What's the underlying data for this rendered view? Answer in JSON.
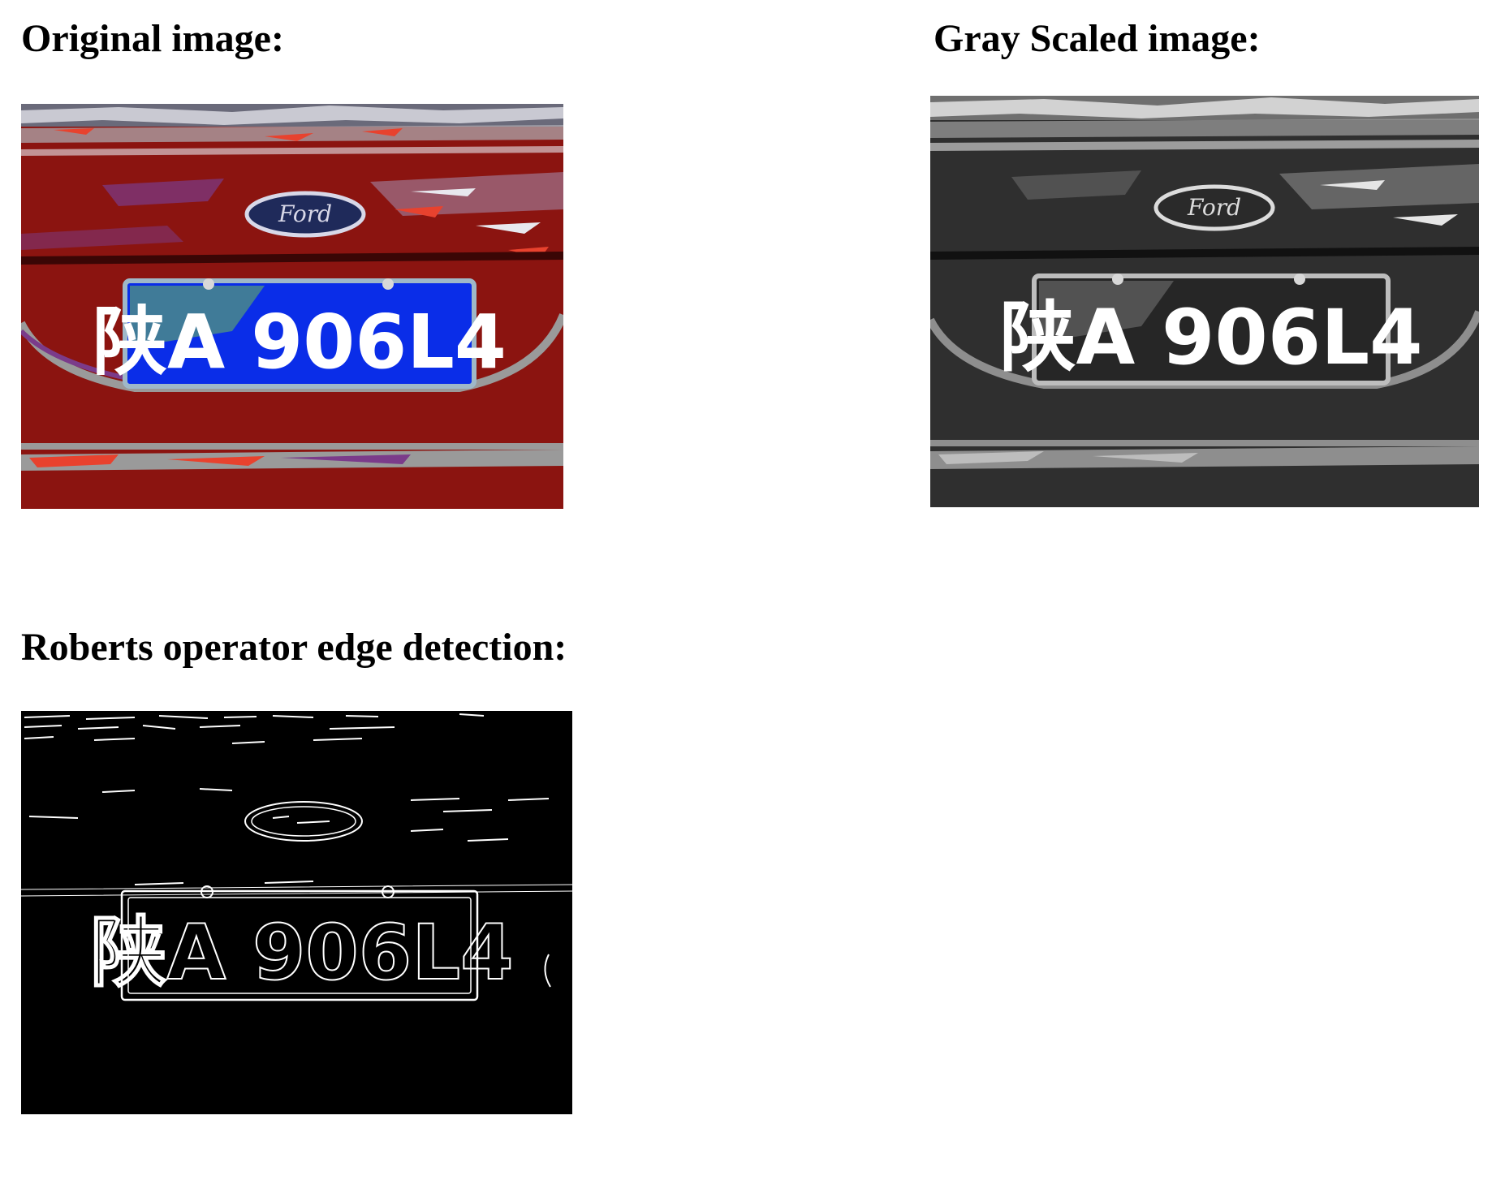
{
  "sections": {
    "original": {
      "heading": "Original image:",
      "image": {
        "plate_text": "陕A 906L4",
        "logo_text": "Ford",
        "colors": {
          "car_body": "#8b1410",
          "plate": "#0a2de8",
          "plate_border": "#9fb8c8",
          "highlight": "#e8422e",
          "bumper": "#9a9a9a"
        }
      }
    },
    "grayscale": {
      "heading": "Gray Scaled image:",
      "image": {
        "plate_text": "陕A 906L4",
        "logo_text": "Ford",
        "colors": {
          "car_body": "#2f2f2f",
          "plate": "#262626",
          "plate_border": "#bdbdbd",
          "bumper": "#8e8e8e"
        }
      }
    },
    "roberts": {
      "heading": "Roberts operator edge detection:",
      "image": {
        "plate_text": "陕A 906L4",
        "colors": {
          "background": "#000000",
          "edge": "#ffffff"
        }
      }
    }
  }
}
